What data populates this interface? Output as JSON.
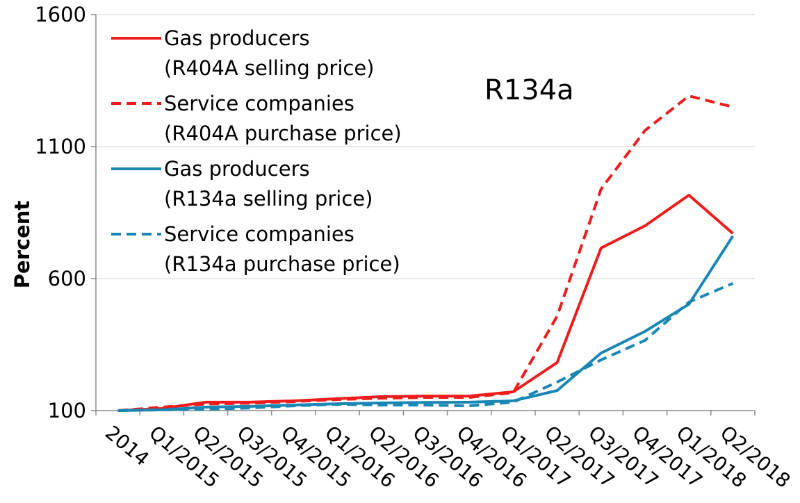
{
  "chart_data": {
    "type": "line",
    "annotation": "R134a",
    "y_label": "Percent",
    "categories": [
      "2014",
      "Q1/2015",
      "Q2/2015",
      "Q3/2015",
      "Q4/2015",
      "Q1/2016",
      "Q2/2016",
      "Q3/2016",
      "Q4/2016",
      "Q1/2017",
      "Q2/2017",
      "Q3/2017",
      "Q4/2017",
      "Q1/2018",
      "Q2/2018"
    ],
    "series": [
      {
        "name": "Gas producers\n(R404A selling price)",
        "color": "#ee1c1c",
        "dash": false,
        "values": [
          100,
          108,
          132,
          132,
          137,
          145,
          153,
          155,
          155,
          171,
          282,
          716,
          800,
          916,
          771
        ]
      },
      {
        "name": "Service companies\n(R404A purchase price)",
        "color": "#ee1c1c",
        "dash": true,
        "values": [
          100,
          113,
          125,
          128,
          134,
          142,
          147,
          150,
          150,
          168,
          458,
          939,
          1161,
          1292,
          1250
        ]
      },
      {
        "name": "Gas producers\n(R134a selling price)",
        "color": "#1a86b4",
        "dash": false,
        "values": [
          100,
          103,
          113,
          116,
          121,
          126,
          129,
          131,
          132,
          137,
          176,
          318,
          400,
          503,
          761
        ]
      },
      {
        "name": "Service companies\n(R134a purchase price)",
        "color": "#1a86b4",
        "dash": true,
        "values": [
          100,
          103,
          105,
          110,
          118,
          124,
          121,
          121,
          118,
          132,
          208,
          292,
          366,
          511,
          582
        ]
      }
    ],
    "ylim": [
      100,
      1600
    ],
    "yticks": [
      100,
      600,
      1100,
      1600
    ],
    "grid": true,
    "legend": "top-left"
  }
}
